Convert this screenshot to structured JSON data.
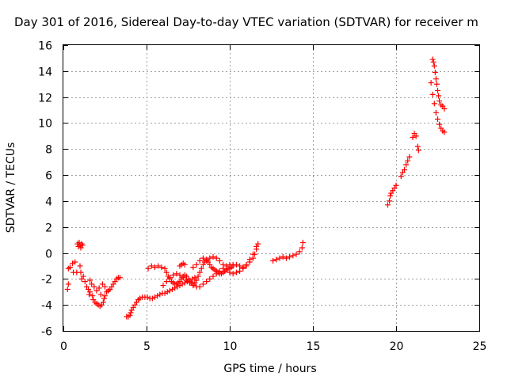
{
  "chart_data": {
    "type": "scatter",
    "title": "Day 301 of 2016, Sidereal Day-to-day VTEC variation (SDTVAR) for receiver m",
    "xlabel": "GPS time / hours",
    "ylabel": "SDTVAR / TECUs",
    "xlim": [
      0,
      25
    ],
    "ylim": [
      -6,
      16
    ],
    "xticks": [
      "0",
      "5",
      "10",
      "15",
      "20",
      "25"
    ],
    "yticks": [
      "-6",
      "-4",
      "-2",
      "0",
      "2",
      "4",
      "6",
      "8",
      "10",
      "12",
      "14",
      "16"
    ],
    "grid": true,
    "marker": "+",
    "color": "#ff0000",
    "series": [
      {
        "values": [
          [
            0.25,
            -2.8
          ],
          [
            0.3,
            -2.4
          ],
          [
            0.3,
            -1.2
          ],
          [
            0.4,
            -1.1
          ],
          [
            0.55,
            -0.8
          ],
          [
            0.6,
            -1.5
          ],
          [
            0.7,
            -0.7
          ],
          [
            0.8,
            -1.5
          ],
          [
            0.85,
            0.7
          ],
          [
            0.9,
            0.5
          ],
          [
            0.95,
            0.8
          ],
          [
            1.0,
            0.6
          ],
          [
            1.05,
            0.4
          ],
          [
            1.1,
            0.7
          ],
          [
            1.15,
            0.6
          ],
          [
            1.0,
            -1.0
          ],
          [
            1.05,
            -1.5
          ],
          [
            1.1,
            -2.0
          ],
          [
            1.2,
            -1.8
          ],
          [
            1.3,
            -2.2
          ],
          [
            1.4,
            -2.6
          ],
          [
            1.5,
            -2.8
          ],
          [
            1.55,
            -3.2
          ],
          [
            1.6,
            -3.0
          ],
          [
            1.6,
            -2.1
          ],
          [
            1.7,
            -2.4
          ],
          [
            1.75,
            -3.3
          ],
          [
            1.8,
            -3.6
          ],
          [
            1.85,
            -2.6
          ],
          [
            1.9,
            -3.8
          ],
          [
            2.0,
            -3.9
          ],
          [
            2.0,
            -2.9
          ],
          [
            2.1,
            -4.0
          ],
          [
            2.15,
            -2.7
          ],
          [
            2.2,
            -4.1
          ],
          [
            2.25,
            -3.2
          ],
          [
            2.3,
            -4.0
          ],
          [
            2.35,
            -2.4
          ],
          [
            2.4,
            -3.8
          ],
          [
            2.45,
            -3.5
          ],
          [
            2.5,
            -2.6
          ],
          [
            2.5,
            -3.3
          ],
          [
            2.6,
            -3.0
          ],
          [
            2.7,
            -2.9
          ],
          [
            2.8,
            -2.8
          ],
          [
            2.9,
            -2.6
          ],
          [
            3.0,
            -2.4
          ],
          [
            3.1,
            -2.2
          ],
          [
            3.2,
            -2.0
          ],
          [
            3.3,
            -1.9
          ],
          [
            3.4,
            -1.9
          ],
          [
            3.8,
            -4.9
          ],
          [
            3.9,
            -4.9
          ],
          [
            4.0,
            -4.8
          ],
          [
            4.05,
            -4.6
          ],
          [
            4.1,
            -4.4
          ],
          [
            4.2,
            -4.2
          ],
          [
            4.3,
            -4.0
          ],
          [
            4.4,
            -3.8
          ],
          [
            4.5,
            -3.6
          ],
          [
            4.6,
            -3.5
          ],
          [
            4.75,
            -3.4
          ],
          [
            4.9,
            -3.4
          ],
          [
            5.05,
            -3.4
          ],
          [
            5.2,
            -3.5
          ],
          [
            5.35,
            -3.5
          ],
          [
            5.5,
            -3.4
          ],
          [
            5.65,
            -3.3
          ],
          [
            5.8,
            -3.2
          ],
          [
            5.95,
            -3.1
          ],
          [
            6.1,
            -3.1
          ],
          [
            6.25,
            -3.0
          ],
          [
            6.4,
            -2.9
          ],
          [
            6.55,
            -2.8
          ],
          [
            6.7,
            -2.7
          ],
          [
            6.85,
            -2.6
          ],
          [
            7.0,
            -2.5
          ],
          [
            7.15,
            -2.4
          ],
          [
            7.3,
            -2.3
          ],
          [
            7.45,
            -2.2
          ],
          [
            7.6,
            -2.1
          ],
          [
            7.75,
            -2.0
          ],
          [
            7.9,
            -1.9
          ],
          [
            5.1,
            -1.2
          ],
          [
            5.3,
            -1.0
          ],
          [
            5.5,
            -1.1
          ],
          [
            5.7,
            -1.0
          ],
          [
            5.9,
            -1.1
          ],
          [
            6.1,
            -1.2
          ],
          [
            6.2,
            -1.5
          ],
          [
            6.3,
            -1.8
          ],
          [
            6.4,
            -2.0
          ],
          [
            6.5,
            -2.2
          ],
          [
            6.6,
            -2.3
          ],
          [
            6.7,
            -2.4
          ],
          [
            6.8,
            -2.4
          ],
          [
            6.9,
            -2.3
          ],
          [
            7.0,
            -2.2
          ],
          [
            7.1,
            -2.0
          ],
          [
            7.2,
            -1.8
          ],
          [
            7.3,
            -1.7
          ],
          [
            7.4,
            -1.8
          ],
          [
            7.5,
            -2.0
          ],
          [
            7.6,
            -2.2
          ],
          [
            7.7,
            -2.3
          ],
          [
            7.8,
            -2.4
          ],
          [
            7.9,
            -2.3
          ],
          [
            8.0,
            -2.1
          ],
          [
            8.1,
            -1.8
          ],
          [
            8.2,
            -1.5
          ],
          [
            8.3,
            -1.2
          ],
          [
            8.4,
            -0.9
          ],
          [
            8.5,
            -0.7
          ],
          [
            8.6,
            -0.6
          ],
          [
            8.7,
            -0.7
          ],
          [
            8.8,
            -0.9
          ],
          [
            8.9,
            -1.1
          ],
          [
            9.0,
            -1.2
          ],
          [
            9.1,
            -1.3
          ],
          [
            9.2,
            -1.4
          ],
          [
            9.3,
            -1.5
          ],
          [
            9.4,
            -1.6
          ],
          [
            9.5,
            -1.6
          ],
          [
            9.6,
            -1.5
          ],
          [
            9.7,
            -1.4
          ],
          [
            9.8,
            -1.3
          ],
          [
            9.9,
            -1.2
          ],
          [
            10.0,
            -1.2
          ],
          [
            10.1,
            -1.1
          ],
          [
            10.2,
            -1.0
          ],
          [
            7.0,
            -1.0
          ],
          [
            7.1,
            -0.9
          ],
          [
            7.2,
            -0.8
          ],
          [
            7.3,
            -0.9
          ],
          [
            6.0,
            -2.5
          ],
          [
            6.2,
            -2.2
          ],
          [
            6.4,
            -1.9
          ],
          [
            6.6,
            -1.7
          ],
          [
            6.8,
            -1.6
          ],
          [
            7.0,
            -1.7
          ],
          [
            7.2,
            -1.9
          ],
          [
            7.4,
            -2.1
          ],
          [
            7.6,
            -2.3
          ],
          [
            7.8,
            -2.5
          ],
          [
            8.0,
            -2.6
          ],
          [
            8.2,
            -2.6
          ],
          [
            8.4,
            -2.4
          ],
          [
            8.6,
            -2.2
          ],
          [
            8.8,
            -2.0
          ],
          [
            9.0,
            -1.8
          ],
          [
            9.2,
            -1.6
          ],
          [
            9.4,
            -1.4
          ],
          [
            9.6,
            -1.2
          ],
          [
            9.8,
            -1.0
          ],
          [
            10.0,
            -0.9
          ],
          [
            10.2,
            -0.9
          ],
          [
            10.4,
            -0.9
          ],
          [
            10.6,
            -1.0
          ],
          [
            10.8,
            -1.1
          ],
          [
            11.0,
            -1.0
          ],
          [
            11.2,
            -0.7
          ],
          [
            11.4,
            -0.4
          ],
          [
            11.5,
            -0.1
          ],
          [
            11.6,
            0.3
          ],
          [
            11.7,
            0.7
          ],
          [
            7.8,
            -1.1
          ],
          [
            8.0,
            -0.9
          ],
          [
            8.2,
            -0.6
          ],
          [
            8.4,
            -0.4
          ],
          [
            8.6,
            -0.5
          ],
          [
            8.8,
            -0.4
          ],
          [
            9.0,
            -0.3
          ],
          [
            9.2,
            -0.4
          ],
          [
            9.4,
            -0.6
          ],
          [
            9.6,
            -0.9
          ],
          [
            9.8,
            -1.2
          ],
          [
            10.0,
            -1.5
          ],
          [
            10.2,
            -1.6
          ],
          [
            10.4,
            -1.5
          ],
          [
            10.6,
            -1.4
          ],
          [
            10.8,
            -1.2
          ],
          [
            11.0,
            -0.9
          ],
          [
            11.2,
            -0.5
          ],
          [
            11.4,
            -0.1
          ],
          [
            11.6,
            0.5
          ],
          [
            12.6,
            -0.6
          ],
          [
            12.8,
            -0.5
          ],
          [
            13.0,
            -0.4
          ],
          [
            13.2,
            -0.3
          ],
          [
            13.4,
            -0.4
          ],
          [
            13.6,
            -0.3
          ],
          [
            13.8,
            -0.2
          ],
          [
            14.0,
            -0.1
          ],
          [
            14.2,
            0.1
          ],
          [
            14.35,
            0.4
          ],
          [
            14.4,
            0.8
          ],
          [
            19.5,
            3.7
          ],
          [
            19.6,
            4.0
          ],
          [
            19.65,
            4.4
          ],
          [
            19.7,
            4.6
          ],
          [
            19.8,
            4.8
          ],
          [
            19.9,
            5.0
          ],
          [
            20.0,
            5.2
          ],
          [
            20.3,
            5.9
          ],
          [
            20.4,
            6.2
          ],
          [
            20.5,
            6.4
          ],
          [
            20.6,
            6.8
          ],
          [
            20.7,
            7.1
          ],
          [
            20.8,
            7.4
          ],
          [
            21.0,
            8.9
          ],
          [
            21.1,
            9.2
          ],
          [
            21.2,
            9.0
          ],
          [
            21.3,
            8.2
          ],
          [
            21.35,
            7.9
          ],
          [
            22.1,
            13.1
          ],
          [
            22.2,
            14.9
          ],
          [
            22.25,
            14.7
          ],
          [
            22.3,
            14.4
          ],
          [
            22.35,
            13.9
          ],
          [
            22.4,
            13.4
          ],
          [
            22.45,
            13.0
          ],
          [
            22.5,
            12.5
          ],
          [
            22.55,
            12.1
          ],
          [
            22.6,
            11.7
          ],
          [
            22.7,
            11.4
          ],
          [
            22.8,
            11.3
          ],
          [
            22.9,
            11.1
          ],
          [
            22.2,
            12.2
          ],
          [
            22.3,
            11.5
          ],
          [
            22.4,
            10.8
          ],
          [
            22.5,
            10.3
          ],
          [
            22.6,
            9.9
          ],
          [
            22.7,
            9.6
          ],
          [
            22.8,
            9.4
          ],
          [
            22.9,
            9.3
          ]
        ]
      }
    ]
  }
}
